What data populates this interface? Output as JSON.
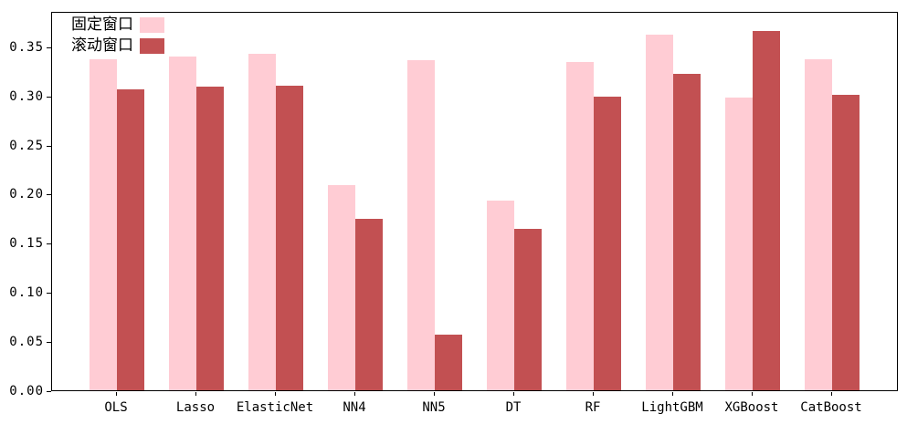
{
  "chart_data": {
    "type": "bar",
    "title": "",
    "xlabel": "",
    "ylabel": "",
    "categories": [
      "OLS",
      "Lasso",
      "ElasticNet",
      "NN4",
      "NN5",
      "DT",
      "RF",
      "LightGBM",
      "XGBoost",
      "CatBoost"
    ],
    "series": [
      {
        "key": "fixed-window",
        "name": "固定窗口",
        "color": "#ffccd4",
        "values": [
          0.337,
          0.34,
          0.342,
          0.209,
          0.336,
          0.193,
          0.334,
          0.362,
          0.298,
          0.337
        ]
      },
      {
        "key": "rolling-window",
        "name": "滚动窗口",
        "color": "#c25052",
        "values": [
          0.306,
          0.309,
          0.31,
          0.174,
          0.057,
          0.164,
          0.299,
          0.322,
          0.366,
          0.301
        ]
      }
    ],
    "ylim": [
      0,
      0.386
    ],
    "yticks": [
      0.0,
      0.05,
      0.1,
      0.15,
      0.2,
      0.25,
      0.3,
      0.35
    ],
    "ytick_labels": [
      "0.00",
      "0.05",
      "0.10",
      "0.15",
      "0.20",
      "0.25",
      "0.30",
      "0.35"
    ],
    "legend": {
      "position": "upper-left",
      "frame": false,
      "entries": [
        "固定窗口",
        "滚动窗口"
      ]
    },
    "grid": false,
    "axis_color": "#000000",
    "text_color": "#000000",
    "background_color": "#ffffff"
  }
}
